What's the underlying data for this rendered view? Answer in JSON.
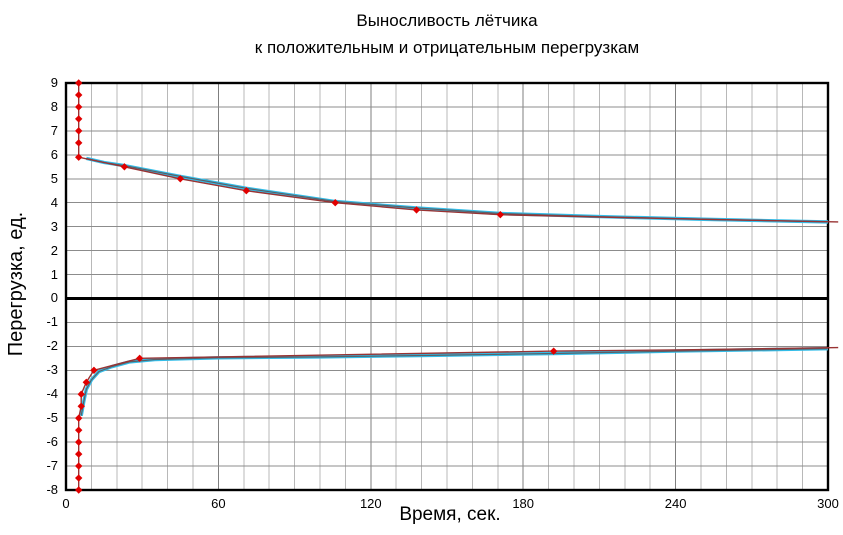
{
  "title": {
    "line1": "Выносливость лётчика",
    "line2": "к положительным и отрицательным перегрузкам"
  },
  "chart_data": {
    "type": "line",
    "title": "Выносливость лётчика к положительным и отрицательным перегрузкам",
    "xlabel": "Время, сек.",
    "ylabel": "Перегрузка, ед.",
    "xlim": [
      0,
      300
    ],
    "ylim": [
      -8,
      9
    ],
    "x_ticks": [
      0,
      60,
      120,
      180,
      240,
      300
    ],
    "y_ticks": [
      9,
      8,
      7,
      6,
      5,
      4,
      3,
      2,
      1,
      0,
      -1,
      -2,
      -3,
      -4,
      -5,
      -6,
      -7,
      -8
    ],
    "x_minor_step": 10,
    "x_major_step": 60,
    "y_grid_step": 1,
    "grid": true,
    "legend": false,
    "colors": {
      "background": "#ffffff",
      "border": "#000000",
      "zero_line": "#000000",
      "h_grid": "#8c8c8c",
      "v_grid_minor": "#b8b8b8",
      "v_grid_major": "#7f7f7f",
      "data_line": "#993333",
      "marker": "#e10000",
      "fit_line": "#33bde8",
      "fit_overlay": "#5c5f66"
    },
    "series": [
      {
        "name": "positive-g-tolerance-data",
        "kind": "data",
        "color": "#993333",
        "width": 1.4,
        "marker": {
          "shape": "diamond",
          "color": "#e10000",
          "size": 3.7
        },
        "points": [
          [
            5,
            9
          ],
          [
            5,
            8.5
          ],
          [
            5,
            8
          ],
          [
            5,
            7.5
          ],
          [
            5,
            7
          ],
          [
            5,
            6.5
          ],
          [
            5,
            5.9
          ],
          [
            23,
            5.5
          ],
          [
            45,
            5
          ],
          [
            71,
            4.5
          ],
          [
            106,
            4
          ],
          [
            138,
            3.7
          ],
          [
            171,
            3.5
          ]
        ],
        "tail": [
          [
            210,
            3.4
          ],
          [
            255,
            3.3
          ],
          [
            304,
            3.2
          ]
        ]
      },
      {
        "name": "positive-g-approximation",
        "kind": "fit",
        "color": "#33bde8",
        "width": 3.4,
        "overlay": {
          "color": "#5c5f66",
          "width": 1.2
        },
        "points": [
          [
            8,
            5.85
          ],
          [
            15,
            5.68
          ],
          [
            23,
            5.55
          ],
          [
            45,
            5.1
          ],
          [
            71,
            4.6
          ],
          [
            106,
            4.05
          ],
          [
            138,
            3.78
          ],
          [
            171,
            3.55
          ],
          [
            210,
            3.42
          ],
          [
            255,
            3.3
          ],
          [
            300,
            3.2
          ]
        ]
      },
      {
        "name": "negative-g-tolerance-data",
        "kind": "data",
        "color": "#993333",
        "width": 1.4,
        "marker": {
          "shape": "diamond",
          "color": "#e10000",
          "size": 3.7
        },
        "points": [
          [
            5,
            -8
          ],
          [
            5,
            -7.5
          ],
          [
            5,
            -7
          ],
          [
            5,
            -6.5
          ],
          [
            5,
            -6
          ],
          [
            5,
            -5.5
          ],
          [
            5,
            -5
          ],
          [
            6,
            -4.5
          ],
          [
            6,
            -4
          ],
          [
            8,
            -3.5
          ],
          [
            11,
            -3
          ],
          [
            29,
            -2.5
          ],
          [
            192,
            -2.2
          ]
        ],
        "tail": [
          [
            240,
            -2.15
          ],
          [
            304,
            -2.05
          ]
        ]
      },
      {
        "name": "negative-g-approximation",
        "kind": "fit",
        "color": "#33bde8",
        "width": 3.4,
        "overlay": {
          "color": "#5c5f66",
          "width": 1.2
        },
        "points": [
          [
            6,
            -4.9
          ],
          [
            7,
            -4.3
          ],
          [
            8,
            -3.8
          ],
          [
            10,
            -3.4
          ],
          [
            13,
            -3.05
          ],
          [
            18,
            -2.85
          ],
          [
            25,
            -2.65
          ],
          [
            35,
            -2.55
          ],
          [
            60,
            -2.48
          ],
          [
            100,
            -2.44
          ],
          [
            140,
            -2.38
          ],
          [
            192,
            -2.3
          ],
          [
            240,
            -2.2
          ],
          [
            300,
            -2.1
          ]
        ]
      }
    ]
  }
}
